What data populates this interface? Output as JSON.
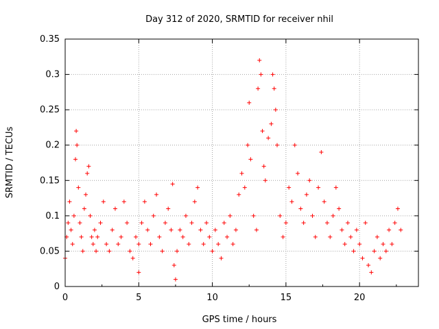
{
  "chart_data": {
    "type": "scatter",
    "title": "Day 312 of 2020, SRMTID for receiver nhil",
    "xlabel": "GPS time / hours",
    "ylabel": "SRMTID / TECUs",
    "xlim": [
      0,
      24
    ],
    "ylim": [
      0,
      0.35
    ],
    "xticks": [
      0,
      5,
      10,
      15,
      20
    ],
    "xtick_labels": [
      "0",
      "5",
      "10",
      "15",
      "20"
    ],
    "yticks": [
      0,
      0.05,
      0.1,
      0.15,
      0.2,
      0.25,
      0.3,
      0.35
    ],
    "ytick_labels": [
      "0",
      "0.05",
      "0.1",
      "0.15",
      "0.2",
      "0.25",
      "0.3",
      "0.35"
    ],
    "grid": true,
    "marker": "+",
    "color": "#ff0000",
    "series": [
      {
        "name": "SRMTID",
        "points": [
          [
            0.0,
            0.04
          ],
          [
            0.1,
            0.07
          ],
          [
            0.2,
            0.09
          ],
          [
            0.3,
            0.12
          ],
          [
            0.4,
            0.08
          ],
          [
            0.5,
            0.06
          ],
          [
            0.6,
            0.1
          ],
          [
            0.7,
            0.18
          ],
          [
            0.75,
            0.22
          ],
          [
            0.8,
            0.2
          ],
          [
            0.9,
            0.14
          ],
          [
            1.0,
            0.09
          ],
          [
            1.1,
            0.07
          ],
          [
            1.2,
            0.05
          ],
          [
            1.3,
            0.11
          ],
          [
            1.4,
            0.13
          ],
          [
            1.5,
            0.16
          ],
          [
            1.6,
            0.17
          ],
          [
            1.7,
            0.1
          ],
          [
            1.8,
            0.07
          ],
          [
            1.9,
            0.06
          ],
          [
            2.0,
            0.08
          ],
          [
            2.1,
            0.05
          ],
          [
            2.2,
            0.07
          ],
          [
            2.4,
            0.09
          ],
          [
            2.6,
            0.12
          ],
          [
            2.8,
            0.06
          ],
          [
            3.0,
            0.05
          ],
          [
            3.2,
            0.08
          ],
          [
            3.4,
            0.11
          ],
          [
            3.6,
            0.06
          ],
          [
            3.8,
            0.07
          ],
          [
            4.0,
            0.12
          ],
          [
            4.2,
            0.09
          ],
          [
            4.4,
            0.05
          ],
          [
            4.6,
            0.04
          ],
          [
            4.8,
            0.07
          ],
          [
            5.0,
            0.06
          ],
          [
            5.0,
            0.02
          ],
          [
            5.2,
            0.09
          ],
          [
            5.4,
            0.12
          ],
          [
            5.6,
            0.08
          ],
          [
            5.8,
            0.06
          ],
          [
            6.0,
            0.1
          ],
          [
            6.2,
            0.13
          ],
          [
            6.4,
            0.07
          ],
          [
            6.6,
            0.05
          ],
          [
            6.8,
            0.09
          ],
          [
            7.0,
            0.11
          ],
          [
            7.2,
            0.08
          ],
          [
            7.3,
            0.145
          ],
          [
            7.4,
            0.03
          ],
          [
            7.5,
            0.01
          ],
          [
            7.6,
            0.05
          ],
          [
            7.8,
            0.08
          ],
          [
            8.0,
            0.07
          ],
          [
            8.2,
            0.1
          ],
          [
            8.4,
            0.06
          ],
          [
            8.6,
            0.09
          ],
          [
            8.8,
            0.12
          ],
          [
            9.0,
            0.14
          ],
          [
            9.2,
            0.08
          ],
          [
            9.4,
            0.06
          ],
          [
            9.6,
            0.09
          ],
          [
            9.8,
            0.07
          ],
          [
            10.0,
            0.05
          ],
          [
            10.2,
            0.08
          ],
          [
            10.4,
            0.06
          ],
          [
            10.6,
            0.04
          ],
          [
            10.8,
            0.09
          ],
          [
            11.0,
            0.07
          ],
          [
            11.2,
            0.1
          ],
          [
            11.4,
            0.06
          ],
          [
            11.6,
            0.08
          ],
          [
            11.8,
            0.13
          ],
          [
            12.0,
            0.16
          ],
          [
            12.2,
            0.14
          ],
          [
            12.4,
            0.2
          ],
          [
            12.5,
            0.26
          ],
          [
            12.6,
            0.18
          ],
          [
            12.8,
            0.1
          ],
          [
            13.0,
            0.08
          ],
          [
            13.1,
            0.28
          ],
          [
            13.2,
            0.32
          ],
          [
            13.3,
            0.3
          ],
          [
            13.4,
            0.22
          ],
          [
            13.5,
            0.17
          ],
          [
            13.6,
            0.15
          ],
          [
            13.8,
            0.21
          ],
          [
            14.0,
            0.23
          ],
          [
            14.1,
            0.3
          ],
          [
            14.2,
            0.28
          ],
          [
            14.3,
            0.25
          ],
          [
            14.4,
            0.2
          ],
          [
            14.6,
            0.1
          ],
          [
            14.8,
            0.07
          ],
          [
            15.0,
            0.09
          ],
          [
            15.2,
            0.14
          ],
          [
            15.4,
            0.12
          ],
          [
            15.6,
            0.2
          ],
          [
            15.8,
            0.16
          ],
          [
            16.0,
            0.11
          ],
          [
            16.2,
            0.09
          ],
          [
            16.4,
            0.13
          ],
          [
            16.6,
            0.15
          ],
          [
            16.8,
            0.1
          ],
          [
            17.0,
            0.07
          ],
          [
            17.2,
            0.14
          ],
          [
            17.4,
            0.19
          ],
          [
            17.6,
            0.12
          ],
          [
            17.8,
            0.09
          ],
          [
            18.0,
            0.07
          ],
          [
            18.2,
            0.1
          ],
          [
            18.4,
            0.14
          ],
          [
            18.6,
            0.11
          ],
          [
            18.8,
            0.08
          ],
          [
            19.0,
            0.06
          ],
          [
            19.2,
            0.09
          ],
          [
            19.4,
            0.07
          ],
          [
            19.6,
            0.05
          ],
          [
            19.8,
            0.08
          ],
          [
            20.0,
            0.06
          ],
          [
            20.2,
            0.04
          ],
          [
            20.4,
            0.09
          ],
          [
            20.6,
            0.03
          ],
          [
            20.8,
            0.02
          ],
          [
            21.0,
            0.05
          ],
          [
            21.2,
            0.07
          ],
          [
            21.4,
            0.04
          ],
          [
            21.6,
            0.06
          ],
          [
            21.8,
            0.05
          ],
          [
            22.0,
            0.08
          ],
          [
            22.2,
            0.06
          ],
          [
            22.4,
            0.09
          ],
          [
            22.6,
            0.11
          ],
          [
            22.8,
            0.08
          ]
        ]
      }
    ]
  }
}
